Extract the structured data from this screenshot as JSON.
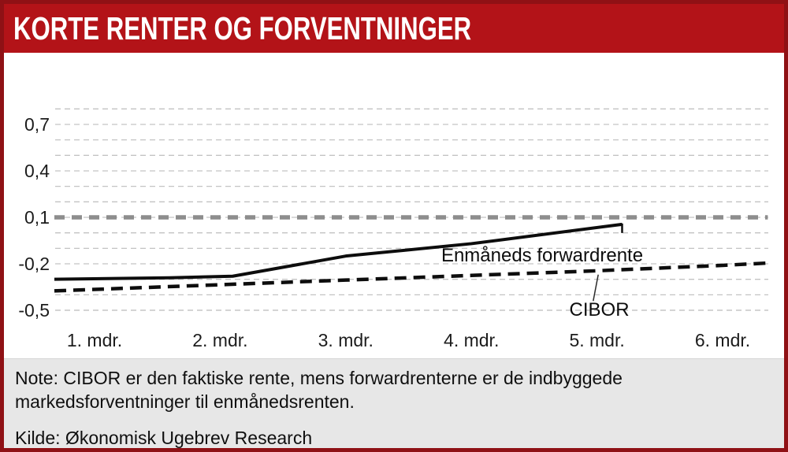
{
  "header": {
    "title": "KORTE RENTER OG FORVENTNINGER"
  },
  "chart_data": {
    "type": "line",
    "title": "Korte renter og forventninger",
    "x_tick_labels": [
      "1. mdr.",
      "2. mdr.",
      "3. mdr.",
      "4. mdr.",
      "5. mdr.",
      "6. mdr."
    ],
    "y_ticks": [
      {
        "value": 0.7,
        "label": "0,7"
      },
      {
        "value": 0.4,
        "label": "0,4"
      },
      {
        "value": 0.1,
        "label": "0,1"
      },
      {
        "value": -0.2,
        "label": "-0,2"
      },
      {
        "value": -0.5,
        "label": "-0,5"
      }
    ],
    "ylim": [
      -0.55,
      0.85
    ],
    "gridlines": {
      "min": -0.5,
      "max": 0.8,
      "step": 0.1
    },
    "reference_line": {
      "value": 0.1,
      "style": "thick-gray-dashed",
      "x_start": 0.68,
      "x_end": 6.36
    },
    "series": [
      {
        "name": "Enmåneds forwardrente",
        "style": "solid",
        "end_tick": true,
        "x": [
          0.68,
          1.6,
          2.1,
          3.0,
          4.0,
          5.2
        ],
        "values": [
          -0.3,
          -0.29,
          -0.28,
          -0.15,
          -0.07,
          0.055
        ]
      },
      {
        "name": "CIBOR",
        "style": "dashed",
        "end_tick": false,
        "x": [
          0.68,
          2.0,
          3.0,
          4.0,
          5.0,
          6.0,
          6.36
        ],
        "values": [
          -0.375,
          -0.335,
          -0.305,
          -0.275,
          -0.245,
          -0.21,
          -0.195
        ]
      }
    ],
    "annotations": [
      {
        "text": "Enmåneds forwardrente",
        "x_month": 3.76,
        "value": -0.185
      },
      {
        "text": "CIBOR",
        "x_month": 4.78,
        "value": -0.535,
        "leader": {
          "x1": 5.01,
          "v1": -0.27,
          "x2": 4.97,
          "v2": -0.44
        }
      }
    ],
    "legend_position": "inline-annotations",
    "grid": true
  },
  "footer": {
    "note": "Note: CIBOR er den faktiske rente, mens forwardrenterne er de indbyggede markedsforventninger til enmånedsrenten.",
    "source": "Kilde: Økonomisk Ugebrev Research"
  }
}
